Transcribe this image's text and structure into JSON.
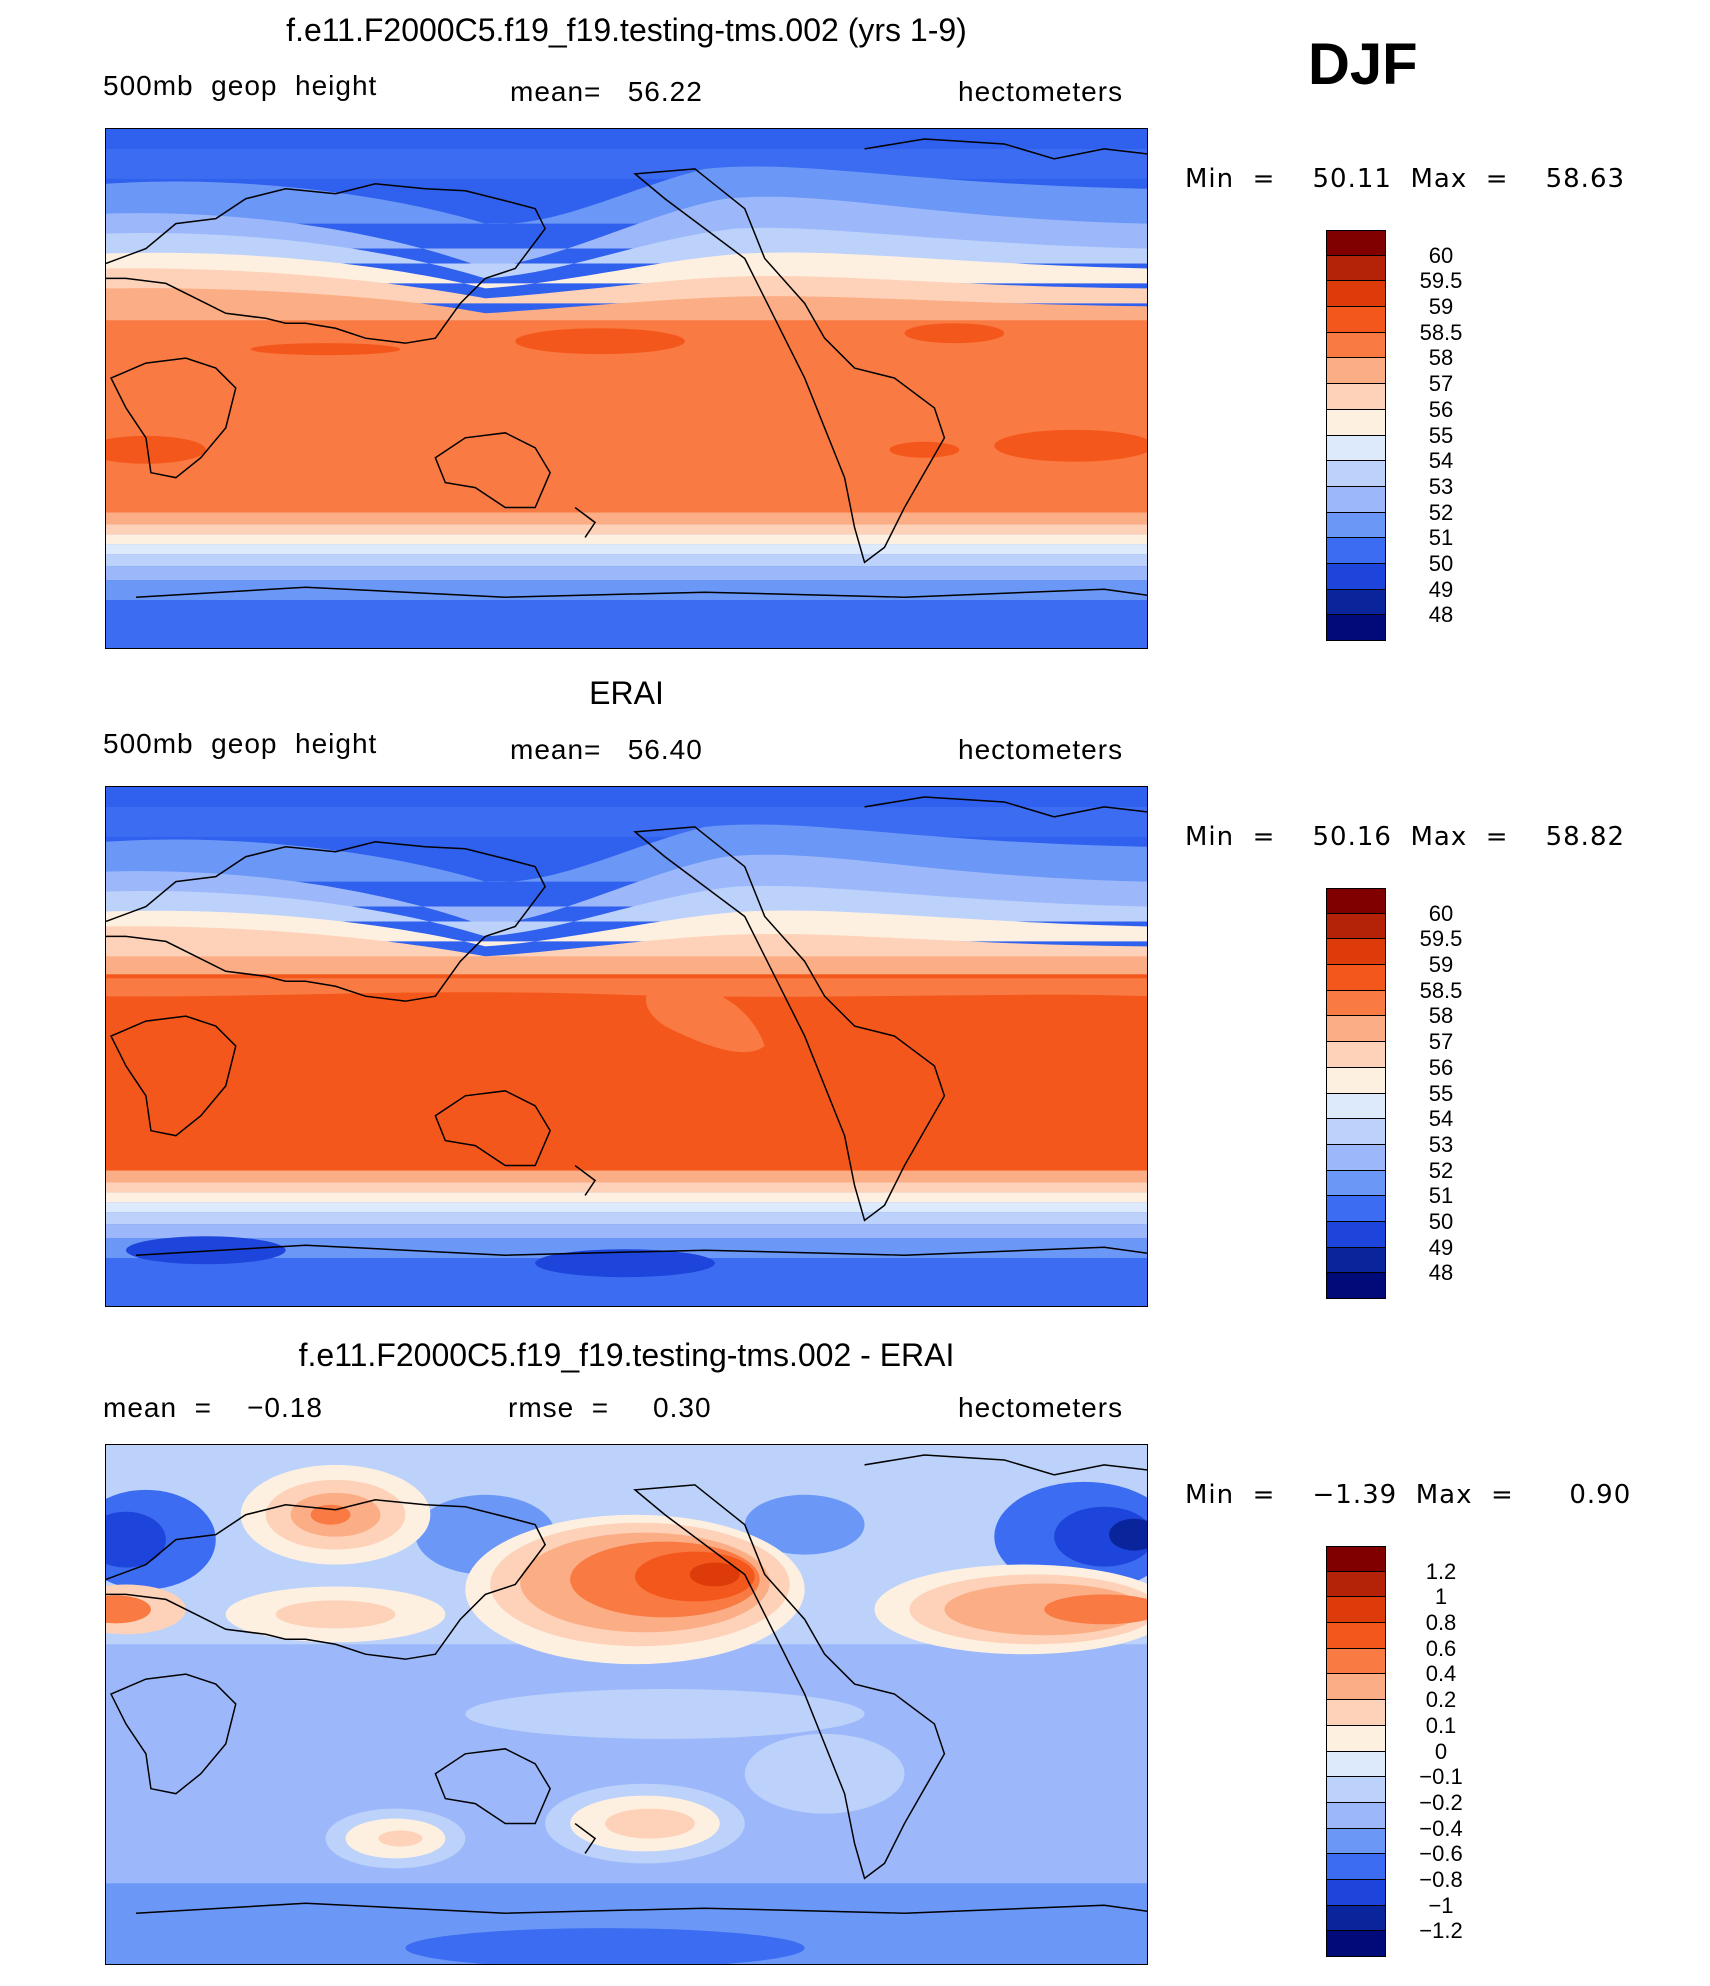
{
  "season": "DJF",
  "panels": [
    {
      "title": "f.e11.F2000C5.f19_f19.testing-tms.002 (yrs 1-9)",
      "left_label": "500mb  geop  height",
      "center_label": "mean=   56.22",
      "right_label": "hectometers",
      "minmax": "Min  =    50.11  Max  =    58.63",
      "colorbar": [
        "60",
        "59.5",
        "59",
        "58.5",
        "58",
        "57",
        "56",
        "55",
        "54",
        "53",
        "52",
        "51",
        "50",
        "49",
        "48"
      ],
      "colors": [
        "#800000",
        "#b42308",
        "#dd3c0a",
        "#f4571b",
        "#f97a42",
        "#fbae86",
        "#fdd2b8",
        "#fdf0e1",
        "#ddeafc",
        "#bcd2fb",
        "#9cb8fa",
        "#6b97f6",
        "#3b6cf2",
        "#1d44db",
        "#0a259c",
        "#000a78"
      ]
    },
    {
      "title": "ERAI",
      "left_label": "500mb  geop  height",
      "center_label": "mean=   56.40",
      "right_label": "hectometers",
      "minmax": "Min  =    50.16  Max  =    58.82",
      "colorbar": [
        "60",
        "59.5",
        "59",
        "58.5",
        "58",
        "57",
        "56",
        "55",
        "54",
        "53",
        "52",
        "51",
        "50",
        "49",
        "48"
      ],
      "colors": [
        "#800000",
        "#b42308",
        "#dd3c0a",
        "#f4571b",
        "#f97a42",
        "#fbae86",
        "#fdd2b8",
        "#fdf0e1",
        "#ddeafc",
        "#bcd2fb",
        "#9cb8fa",
        "#6b97f6",
        "#3b6cf2",
        "#1d44db",
        "#0a259c",
        "#000a78"
      ]
    },
    {
      "title": "f.e11.F2000C5.f19_f19.testing-tms.002 - ERAI",
      "left_label": "mean  =    −0.18",
      "center_label": "rmse  =     0.30",
      "right_label": "hectometers",
      "minmax": "Min  =    −1.39  Max  =      0.90",
      "colorbar": [
        "1.2",
        "1",
        "0.8",
        "0.6",
        "0.4",
        "0.2",
        "0.1",
        "0",
        "−0.1",
        "−0.2",
        "−0.4",
        "−0.6",
        "−0.8",
        "−1",
        "−1.2"
      ],
      "colors": [
        "#800000",
        "#b42308",
        "#dd3c0a",
        "#f4571b",
        "#f97a42",
        "#fbae86",
        "#fdd2b8",
        "#fdf0e1",
        "#ddeafc",
        "#bcd2fb",
        "#9cb8fa",
        "#6b97f6",
        "#3b6cf2",
        "#1d44db",
        "#0a259c",
        "#000a78"
      ]
    }
  ],
  "chart_data": [
    {
      "type": "heatmap",
      "title": "f.e11.F2000C5.f19_f19.testing-tms.002 (yrs 1-9)",
      "variable": "500mb  geop  height",
      "units": "hectometers",
      "mean": 56.22,
      "min": 50.11,
      "max": 58.63,
      "levels": [
        48,
        49,
        50,
        51,
        52,
        53,
        54,
        55,
        56,
        57,
        58,
        58.5,
        59,
        59.5,
        60
      ]
    },
    {
      "type": "heatmap",
      "title": "ERAI",
      "variable": "500mb  geop  height",
      "units": "hectometers",
      "mean": 56.4,
      "min": 50.16,
      "max": 58.82,
      "levels": [
        48,
        49,
        50,
        51,
        52,
        53,
        54,
        55,
        56,
        57,
        58,
        58.5,
        59,
        59.5,
        60
      ]
    },
    {
      "type": "heatmap",
      "title": "f.e11.F2000C5.f19_f19.testing-tms.002 - ERAI",
      "units": "hectometers",
      "mean": -0.18,
      "rmse": 0.3,
      "min": -1.39,
      "max": 0.9,
      "levels": [
        -1.2,
        -1,
        -0.8,
        -0.6,
        -0.4,
        -0.2,
        -0.1,
        0,
        0.1,
        0.2,
        0.4,
        0.6,
        0.8,
        1,
        1.2
      ]
    }
  ]
}
